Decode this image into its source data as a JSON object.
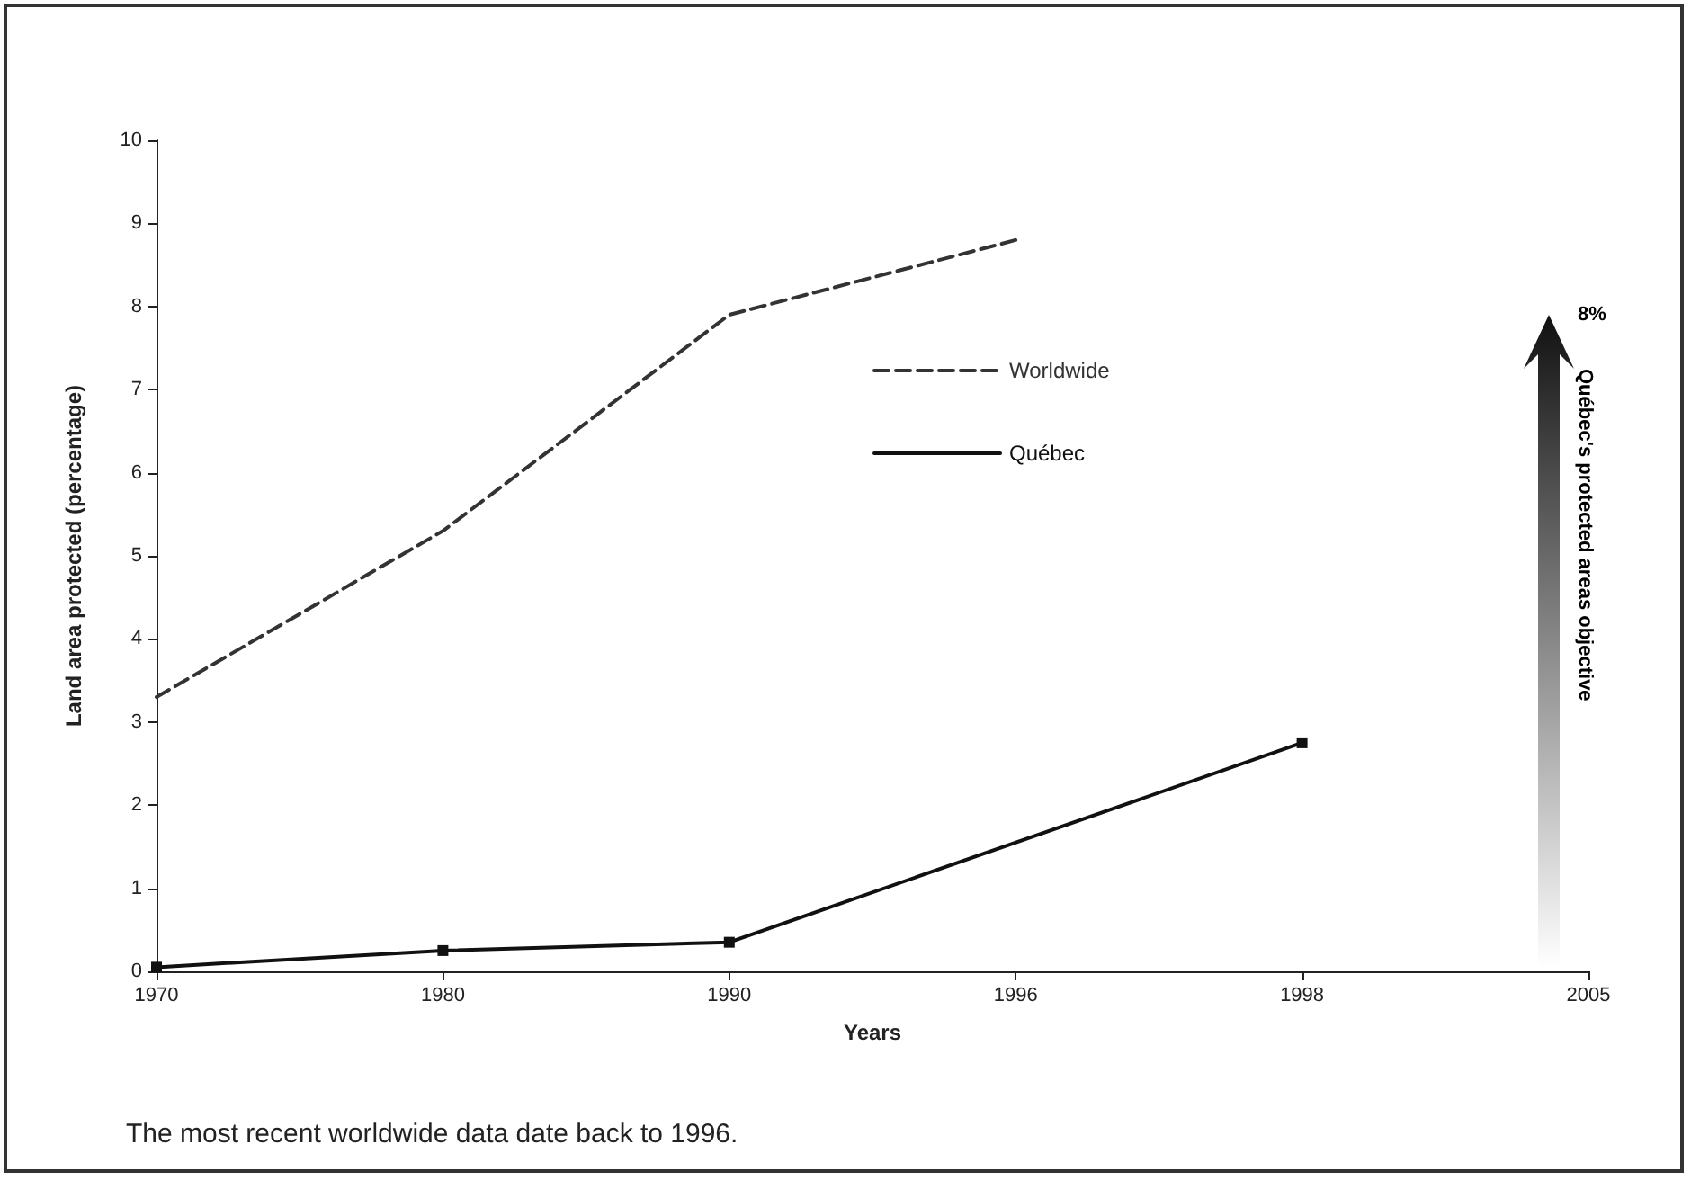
{
  "chart_data": {
    "type": "line",
    "categories": [
      "1970",
      "1980",
      "1990",
      "1996",
      "1998",
      "2005"
    ],
    "xlabel": "Years",
    "ylabel": "Land area protected (percentage)",
    "ylim": [
      0,
      10
    ],
    "yticks": [
      0,
      1,
      2,
      3,
      4,
      5,
      6,
      7,
      8,
      9,
      10
    ],
    "series": [
      {
        "name": "Worldwide",
        "color": "#333333",
        "line_style": "dashed",
        "marker": "none",
        "values": [
          3.3,
          5.3,
          7.9,
          8.8,
          null,
          null
        ]
      },
      {
        "name": "Québec",
        "color": "#111111",
        "line_style": "solid",
        "marker": "square",
        "values": [
          0.05,
          0.25,
          0.35,
          null,
          2.75,
          null
        ]
      }
    ],
    "annotations": [
      "8%",
      "Québec's protected areas objective",
      "The most recent worldwide data date back to 1996."
    ],
    "grid": false,
    "legend": "top"
  }
}
